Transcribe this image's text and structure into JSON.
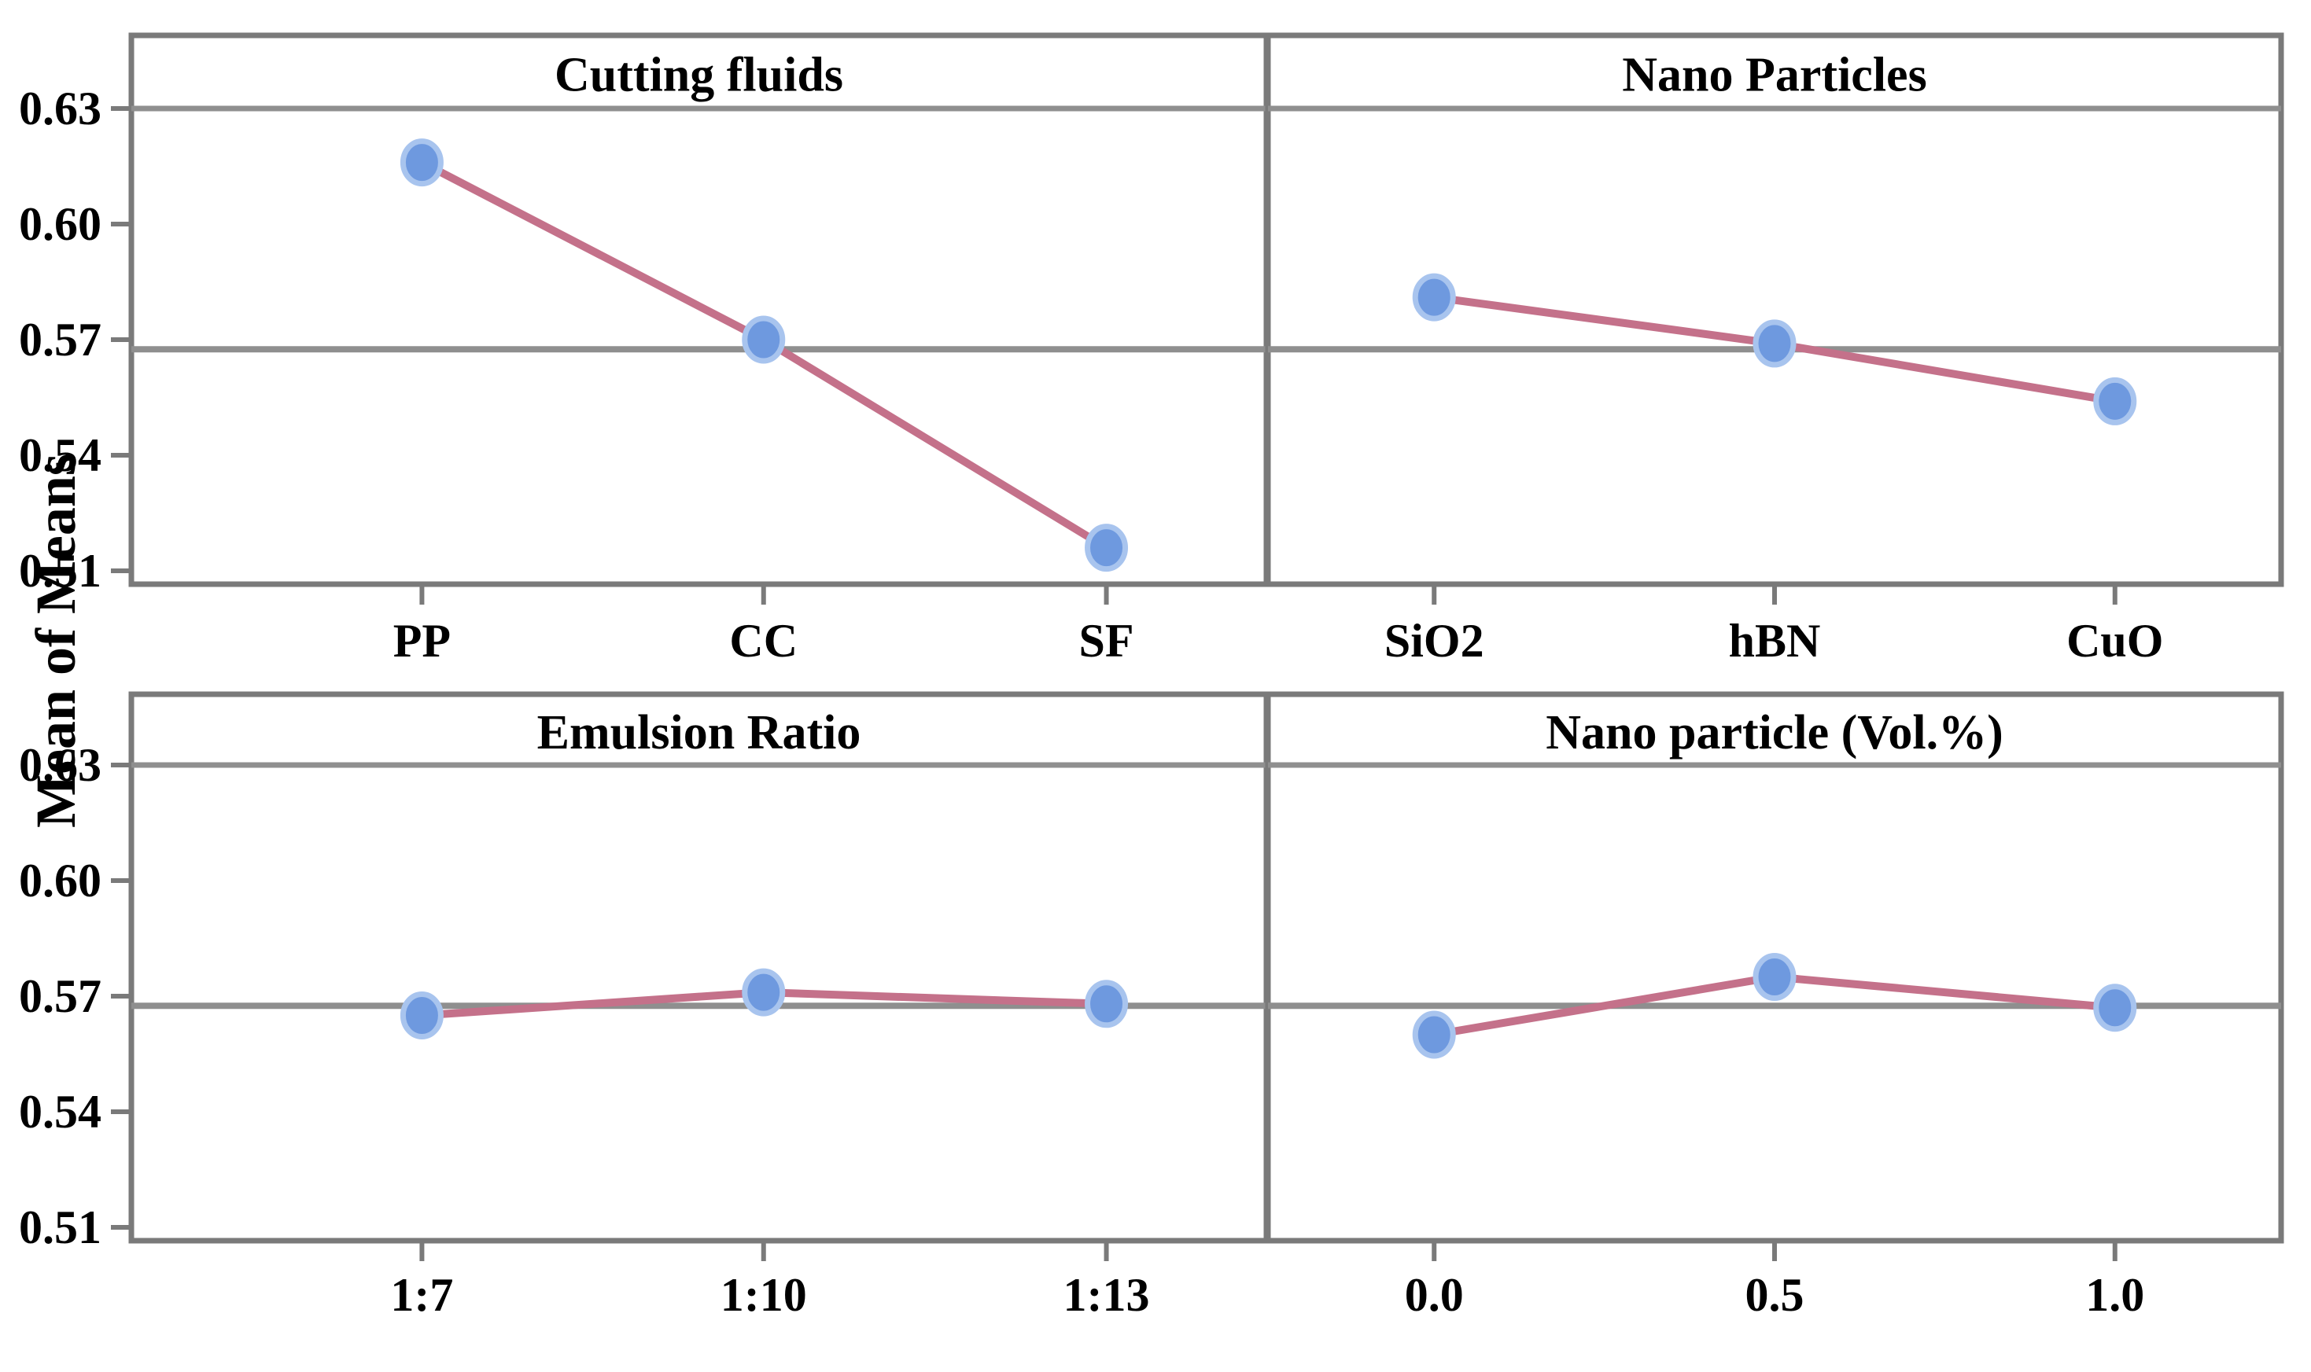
{
  "figure": {
    "kind": "main-effects-plot",
    "background": "#ffffff"
  },
  "axes": {
    "ylabel": "Mean of Means",
    "yticks": [
      0.63,
      0.6,
      0.57,
      0.54,
      0.51
    ],
    "ytick_labels": [
      "0.63",
      "0.60",
      "0.57",
      "0.54",
      "0.51"
    ],
    "ylim": [
      0.5065,
      0.649
    ],
    "reference_line": 0.5675,
    "grid": false,
    "legend": "none"
  },
  "style": {
    "marker_color": "#6E99DF",
    "marker_halo": "#A8C4EE",
    "line_color": "#C4718A",
    "reference_color": "#8F8F8F",
    "border_color": "#7A7A7A",
    "text_color": "#000000"
  },
  "chart_data": [
    {
      "type": "line",
      "panel": "top-left",
      "title": "Cutting fluids",
      "categories": [
        "PP",
        "CC",
        "SF"
      ],
      "values": [
        0.616,
        0.57,
        0.516
      ]
    },
    {
      "type": "line",
      "panel": "top-right",
      "title": "Nano Particles",
      "categories": [
        "SiO2",
        "hBN",
        "CuO"
      ],
      "values": [
        0.581,
        0.569,
        0.554
      ]
    },
    {
      "type": "line",
      "panel": "bottom-left",
      "title": "Emulsion Ratio",
      "categories": [
        "1:7",
        "1:10",
        "1:13"
      ],
      "values": [
        0.565,
        0.571,
        0.568
      ]
    },
    {
      "type": "line",
      "panel": "bottom-right",
      "title": "Nano particle (Vol.%)",
      "categories": [
        "0.0",
        "0.5",
        "1.0"
      ],
      "values": [
        0.56,
        0.575,
        0.567
      ]
    }
  ]
}
